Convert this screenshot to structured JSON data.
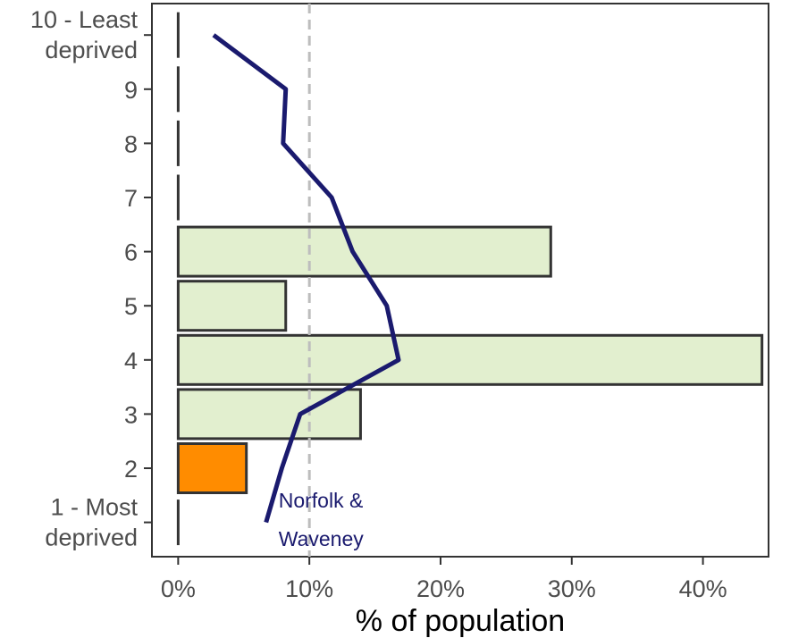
{
  "chart_data": {
    "type": "bar",
    "orientation": "horizontal",
    "xlabel": "% of population",
    "ylabel": "",
    "xlim": [
      -0.02,
      0.45
    ],
    "x_ticks": [
      0,
      0.1,
      0.2,
      0.3,
      0.4
    ],
    "x_tick_labels": [
      "0%",
      "10%",
      "20%",
      "30%",
      "40%"
    ],
    "categories": [
      {
        "id": "1",
        "lines": [
          "1 - Most",
          "deprived"
        ]
      },
      {
        "id": "2",
        "lines": [
          "2"
        ]
      },
      {
        "id": "3",
        "lines": [
          "3"
        ]
      },
      {
        "id": "4",
        "lines": [
          "4"
        ]
      },
      {
        "id": "5",
        "lines": [
          "5"
        ]
      },
      {
        "id": "6",
        "lines": [
          "6"
        ]
      },
      {
        "id": "7",
        "lines": [
          "7"
        ]
      },
      {
        "id": "8",
        "lines": [
          "8"
        ]
      },
      {
        "id": "9",
        "lines": [
          "9"
        ]
      },
      {
        "id": "10",
        "lines": [
          "10 - Least",
          "deprived"
        ]
      }
    ],
    "bars": {
      "values": [
        0,
        0.052,
        0.139,
        0.445,
        0.082,
        0.284,
        0,
        0,
        0,
        0
      ],
      "colors": [
        "#e2efcf",
        "#ff8c00",
        "#e2efcf",
        "#e2efcf",
        "#e2efcf",
        "#e2efcf",
        "#e2efcf",
        "#e2efcf",
        "#e2efcf",
        "#e2efcf"
      ],
      "edge_color": "#333333"
    },
    "reference_line": {
      "x": 0.1,
      "style": "dashed",
      "color": "#bdbdbd"
    },
    "series": [
      {
        "name": "Norfolk & Waveney",
        "label_lines": [
          "Norfolk &",
          "Waveney"
        ],
        "color": "#1a1a6e",
        "values": [
          0.067,
          0.079,
          0.093,
          0.168,
          0.159,
          0.133,
          0.117,
          0.08,
          0.082,
          0.027
        ]
      }
    ],
    "grid": false,
    "legend": "none"
  }
}
